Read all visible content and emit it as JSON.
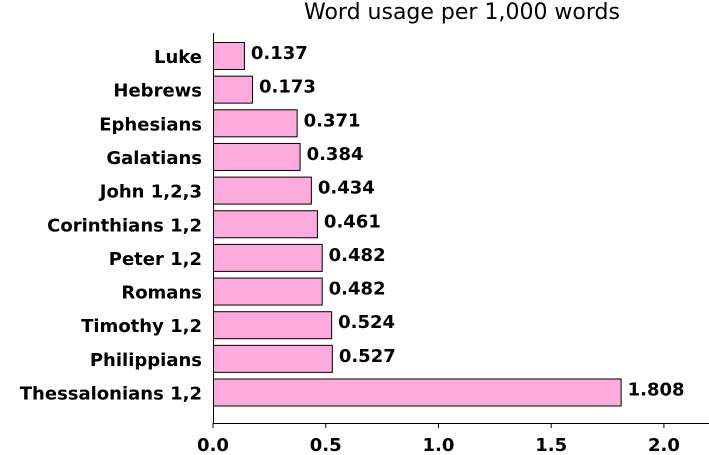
{
  "chart_data": {
    "type": "bar",
    "orientation": "horizontal",
    "title": "Word usage per 1,000 words",
    "xlabel": "",
    "ylabel": "",
    "categories": [
      "Luke",
      "Hebrews",
      "Ephesians",
      "Galatians",
      "John 1,2,3",
      "Corinthians 1,2",
      "Peter 1,2",
      "Romans",
      "Timothy 1,2",
      "Philippians",
      "Thessalonians 1,2"
    ],
    "values": [
      0.137,
      0.173,
      0.371,
      0.384,
      0.434,
      0.461,
      0.482,
      0.482,
      0.524,
      0.527,
      1.808
    ],
    "value_labels": [
      "0.137",
      "0.173",
      "0.371",
      "0.384",
      "0.434",
      "0.461",
      "0.482",
      "0.482",
      "0.524",
      "0.527",
      "1.808"
    ],
    "xlim": [
      0,
      2.2
    ],
    "xticks": [
      0.0,
      0.5,
      1.0,
      1.5,
      2.0
    ],
    "xtick_labels": [
      "0.0",
      "0.5",
      "1.0",
      "1.5",
      "2.0"
    ],
    "grid": false,
    "legend": "none",
    "bar_color": "#ffaadd",
    "bar_edge_color": "#000000"
  }
}
